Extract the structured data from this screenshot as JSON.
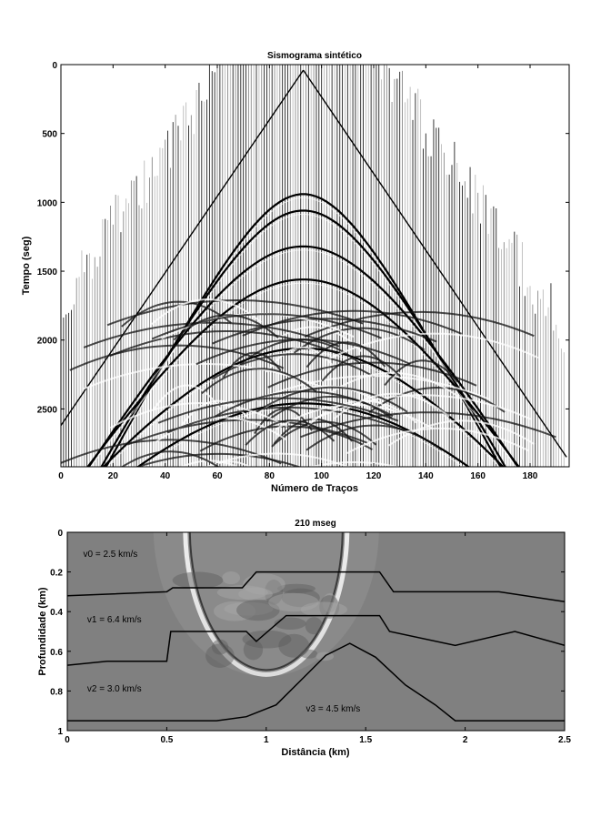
{
  "chart_data": [
    {
      "type": "seismogram",
      "title": "Sismograma sintético",
      "xlabel": "Número de Traços",
      "ylabel": "Tempo (seg)",
      "xlim": [
        0,
        195
      ],
      "ylim": [
        2920,
        0
      ],
      "y_inverted": true,
      "xticks": [
        0,
        20,
        40,
        60,
        80,
        100,
        120,
        140,
        160,
        180
      ],
      "yticks": [
        0,
        500,
        1000,
        1500,
        2000,
        2500
      ],
      "grid": false,
      "legend": "none",
      "n_traces": 194,
      "trace_spacing": 1,
      "colors": {
        "trace": "#000000",
        "background": "#ffffff"
      },
      "events": [
        {
          "name": "direct-wave-left",
          "points": [
            [
              0,
              2620
            ],
            [
              93,
              40
            ]
          ]
        },
        {
          "name": "direct-wave-right",
          "points": [
            [
              93,
              40
            ],
            [
              194,
              2850
            ]
          ]
        },
        {
          "name": "reflection-1",
          "t0": 940,
          "apex_x": 93,
          "half_width": 120,
          "velocity_factor": 1.2
        },
        {
          "name": "reflection-2",
          "t0": 1060,
          "apex_x": 93,
          "half_width": 130,
          "velocity_factor": 1.3
        },
        {
          "name": "reflection-3",
          "t0": 1320,
          "apex_x": 93,
          "half_width": 140,
          "velocity_factor": 1.6
        },
        {
          "name": "reflection-4",
          "t0": 1560,
          "apex_x": 93,
          "half_width": 150,
          "velocity_factor": 1.8
        },
        {
          "name": "reflection-5",
          "t0": 2060,
          "apex_x": 93,
          "half_width": 160,
          "velocity_factor": 2.2
        },
        {
          "name": "reflection-6",
          "t0": 2460,
          "apex_x": 93,
          "half_width": 170,
          "velocity_factor": 2.6
        }
      ]
    },
    {
      "type": "wavefield-snapshot",
      "title": "210 mseg",
      "xlabel": "Distância (km)",
      "ylabel": "Profundidade (km)",
      "xlim": [
        0,
        2.5
      ],
      "ylim": [
        1,
        0
      ],
      "y_inverted": true,
      "xticks": [
        0,
        0.5,
        1,
        1.5,
        2,
        2.5
      ],
      "xtick_labels": [
        "0",
        "0.5",
        "1",
        "1.5",
        "2",
        "2.5"
      ],
      "yticks": [
        0,
        0.2,
        0.4,
        0.6,
        0.8,
        1
      ],
      "ytick_labels": [
        "0",
        "0.2",
        "0.4",
        "0.6",
        "0.8",
        "1"
      ],
      "grid": false,
      "legend": "none",
      "colors": {
        "background": "#7f7f7f",
        "interface": "#000000"
      },
      "interfaces": [
        {
          "name": "interface-1",
          "points": [
            [
              0,
              0.32
            ],
            [
              0.5,
              0.3
            ],
            [
              0.53,
              0.28
            ],
            [
              0.88,
              0.28
            ],
            [
              0.95,
              0.2
            ],
            [
              1.57,
              0.2
            ],
            [
              1.64,
              0.3
            ],
            [
              2.17,
              0.3
            ],
            [
              2.5,
              0.35
            ]
          ]
        },
        {
          "name": "interface-2",
          "points": [
            [
              0,
              0.67
            ],
            [
              0.2,
              0.65
            ],
            [
              0.5,
              0.65
            ],
            [
              0.52,
              0.5
            ],
            [
              0.9,
              0.5
            ],
            [
              0.95,
              0.55
            ],
            [
              1.1,
              0.42
            ],
            [
              1.57,
              0.42
            ],
            [
              1.62,
              0.5
            ],
            [
              1.95,
              0.57
            ],
            [
              2.25,
              0.5
            ],
            [
              2.5,
              0.57
            ]
          ]
        },
        {
          "name": "interface-3",
          "points": [
            [
              0,
              0.95
            ],
            [
              0.75,
              0.95
            ],
            [
              0.9,
              0.93
            ],
            [
              1.05,
              0.87
            ],
            [
              1.2,
              0.72
            ],
            [
              1.3,
              0.62
            ],
            [
              1.42,
              0.56
            ],
            [
              1.55,
              0.63
            ],
            [
              1.7,
              0.77
            ],
            [
              1.85,
              0.87
            ],
            [
              1.95,
              0.95
            ],
            [
              2.5,
              0.95
            ]
          ]
        }
      ],
      "annotations": [
        {
          "text": "v0 = 2.5 km/s",
          "x": 0.08,
          "y": 0.11
        },
        {
          "text": "v1 = 6.4 km/s",
          "x": 0.1,
          "y": 0.44
        },
        {
          "text": "v2 = 3.0 km/s",
          "x": 0.1,
          "y": 0.79
        },
        {
          "text": "v3 = 4.5 km/s",
          "x": 1.2,
          "y": 0.89
        }
      ],
      "wavefront": {
        "center_x": 1.0,
        "center_z": 0.0,
        "radius": 0.74
      }
    }
  ]
}
